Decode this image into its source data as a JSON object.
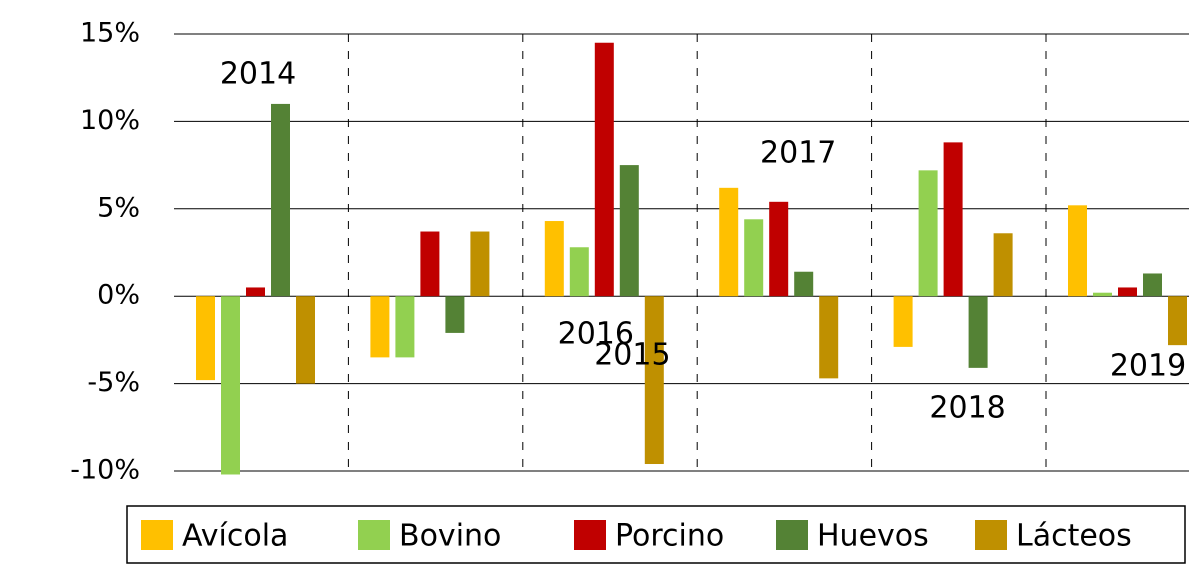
{
  "chart_data": {
    "type": "bar",
    "categories": [
      "2014",
      "2015",
      "2016",
      "2017",
      "2018",
      "2019"
    ],
    "series": [
      {
        "name": "Avícola",
        "color": "#FFC000",
        "values": [
          -4.8,
          -3.5,
          4.3,
          6.2,
          -2.9,
          5.2
        ]
      },
      {
        "name": "Bovino",
        "color": "#92D050",
        "values": [
          -10.2,
          -3.5,
          2.8,
          4.4,
          7.2,
          0.2
        ]
      },
      {
        "name": "Porcino",
        "color": "#C00000",
        "values": [
          0.5,
          3.7,
          14.5,
          5.4,
          8.8,
          0.5
        ]
      },
      {
        "name": "Huevos",
        "color": "#548235",
        "values": [
          11,
          -2.1,
          7.5,
          1.4,
          -4.1,
          1.3
        ]
      },
      {
        "name": "Lácteos",
        "color": "#BF9000",
        "values": [
          -5,
          3.7,
          -9.6,
          -4.7,
          3.6,
          -2.8
        ]
      }
    ],
    "ylim": [
      -10,
      15
    ],
    "yticks": [
      {
        "value": -10,
        "label": "-10%"
      },
      {
        "value": -5,
        "label": "-5%"
      },
      {
        "value": 0,
        "label": "0%"
      },
      {
        "value": 5,
        "label": "5%"
      },
      {
        "value": 10,
        "label": "10%"
      },
      {
        "value": 15,
        "label": "15%"
      }
    ],
    "grid": true,
    "legend": "bottom"
  }
}
